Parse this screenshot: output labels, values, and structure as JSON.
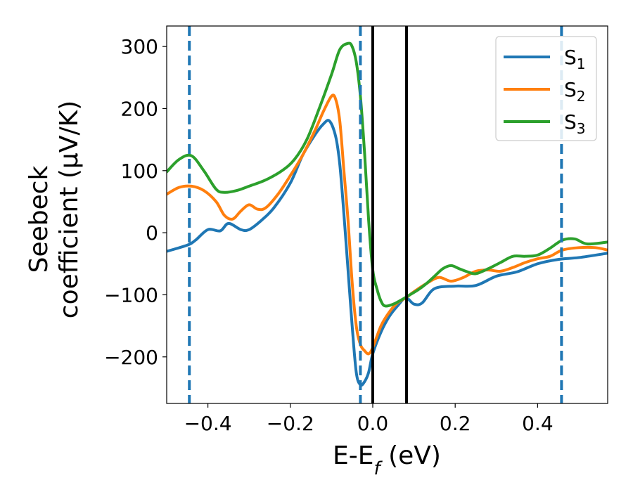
{
  "chart_data": {
    "type": "line",
    "xlabel": "E-E_f (eV)",
    "ylabel_line1": "Seebeck",
    "ylabel_line2": "coefficient  (μV/K)",
    "xlim": [
      -0.5,
      0.57
    ],
    "ylim": [
      -275,
      333
    ],
    "xticks": [
      -0.4,
      -0.2,
      0.0,
      0.2,
      0.4
    ],
    "xtick_labels": [
      "−0.4",
      "−0.2",
      "0.0",
      "0.2",
      "0.4"
    ],
    "yticks": [
      -200,
      -100,
      0,
      100,
      200,
      300
    ],
    "ytick_labels": [
      "−200",
      "−100",
      "0",
      "100",
      "200",
      "300"
    ],
    "grid": false,
    "legend_position": "top-right",
    "series": [
      {
        "name": "S1",
        "label_base": "S",
        "label_sub": "1",
        "color": "#1f77b4",
        "x": [
          -0.5,
          -0.45,
          -0.43,
          -0.4,
          -0.37,
          -0.35,
          -0.32,
          -0.3,
          -0.27,
          -0.24,
          -0.2,
          -0.17,
          -0.14,
          -0.12,
          -0.105,
          -0.09,
          -0.08,
          -0.07,
          -0.06,
          -0.05,
          -0.04,
          -0.03,
          -0.02,
          -0.01,
          0.0,
          0.02,
          0.04,
          0.06,
          0.08,
          0.1,
          0.12,
          0.15,
          0.2,
          0.25,
          0.3,
          0.35,
          0.4,
          0.45,
          0.5,
          0.57
        ],
        "y": [
          -30,
          -20,
          -12,
          5,
          3,
          15,
          5,
          5,
          20,
          40,
          80,
          125,
          158,
          175,
          180,
          155,
          110,
          30,
          -60,
          -150,
          -225,
          -245,
          -240,
          -225,
          -195,
          -160,
          -135,
          -118,
          -105,
          -115,
          -113,
          -90,
          -86,
          -85,
          -70,
          -63,
          -50,
          -43,
          -40,
          -33
        ]
      },
      {
        "name": "S2",
        "label_base": "S",
        "label_sub": "2",
        "color": "#ff7f0e",
        "x": [
          -0.5,
          -0.47,
          -0.44,
          -0.41,
          -0.38,
          -0.36,
          -0.34,
          -0.32,
          -0.3,
          -0.28,
          -0.26,
          -0.23,
          -0.2,
          -0.17,
          -0.14,
          -0.12,
          -0.1,
          -0.09,
          -0.08,
          -0.07,
          -0.06,
          -0.05,
          -0.04,
          -0.03,
          -0.02,
          -0.01,
          0.0,
          0.02,
          0.04,
          0.06,
          0.08,
          0.1,
          0.13,
          0.16,
          0.19,
          0.22,
          0.25,
          0.28,
          0.31,
          0.34,
          0.37,
          0.4,
          0.43,
          0.46,
          0.5,
          0.54,
          0.57
        ],
        "y": [
          62,
          73,
          75,
          68,
          50,
          28,
          22,
          35,
          45,
          38,
          40,
          62,
          92,
          125,
          165,
          195,
          220,
          215,
          180,
          100,
          20,
          -80,
          -150,
          -180,
          -190,
          -195,
          -185,
          -150,
          -128,
          -113,
          -105,
          -95,
          -82,
          -72,
          -78,
          -72,
          -62,
          -60,
          -62,
          -56,
          -48,
          -42,
          -38,
          -28,
          -24,
          -24,
          -28
        ]
      },
      {
        "name": "S3",
        "label_base": "S",
        "label_sub": "3",
        "color": "#2ca02c",
        "x": [
          -0.5,
          -0.47,
          -0.44,
          -0.41,
          -0.38,
          -0.36,
          -0.33,
          -0.3,
          -0.26,
          -0.22,
          -0.19,
          -0.16,
          -0.13,
          -0.1,
          -0.08,
          -0.06,
          -0.05,
          -0.04,
          -0.03,
          -0.02,
          -0.01,
          0.0,
          0.01,
          0.02,
          0.03,
          0.05,
          0.07,
          0.09,
          0.11,
          0.13,
          0.15,
          0.17,
          0.19,
          0.21,
          0.23,
          0.25,
          0.28,
          0.31,
          0.34,
          0.37,
          0.4,
          0.43,
          0.46,
          0.49,
          0.52,
          0.57
        ],
        "y": [
          98,
          118,
          124,
          100,
          70,
          65,
          68,
          75,
          85,
          100,
          118,
          150,
          200,
          255,
          295,
          305,
          300,
          275,
          220,
          130,
          20,
          -60,
          -90,
          -110,
          -118,
          -115,
          -108,
          -100,
          -92,
          -82,
          -70,
          -58,
          -53,
          -58,
          -63,
          -66,
          -58,
          -48,
          -38,
          -38,
          -36,
          -25,
          -12,
          -10,
          -18,
          -15
        ]
      }
    ],
    "reference_lines": [
      {
        "x": -0.445,
        "color": "#1f77b4",
        "style": "dashed"
      },
      {
        "x": -0.03,
        "color": "#1f77b4",
        "style": "dashed"
      },
      {
        "x": 0.458,
        "color": "#1f77b4",
        "style": "dashed"
      },
      {
        "x": 0.0,
        "color": "#000000",
        "style": "solid"
      },
      {
        "x": 0.082,
        "color": "#000000",
        "style": "solid"
      }
    ]
  }
}
